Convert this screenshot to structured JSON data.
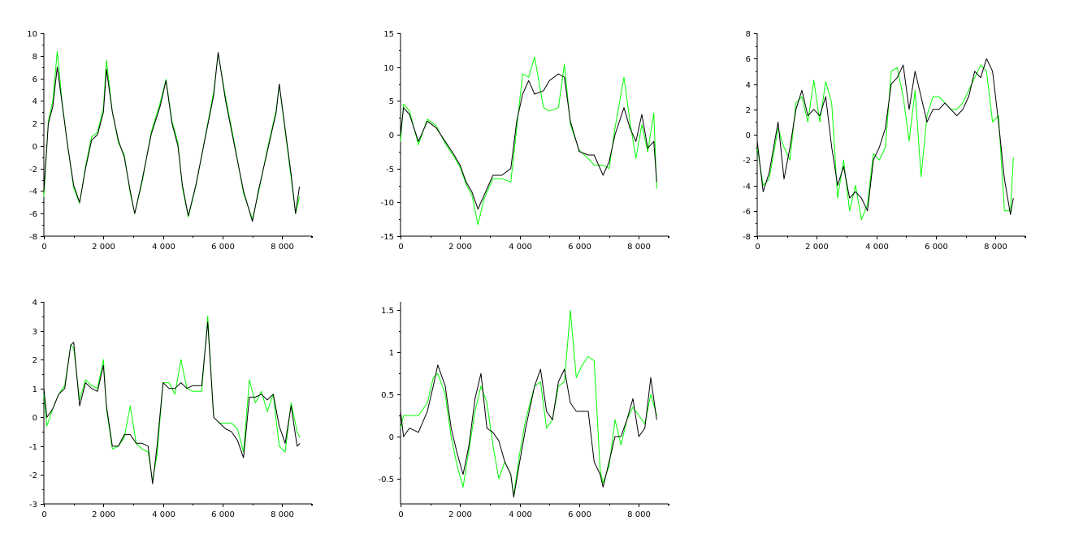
{
  "colors": {
    "background": "#ffffff",
    "axis": "#000000",
    "series_black": "#000000",
    "series_green": "#00ff00"
  },
  "chart_data": [
    {
      "type": "line",
      "grid": false,
      "xlim": [
        0,
        9000
      ],
      "ylim": [
        -8,
        10
      ],
      "xticks": [
        0,
        2000,
        4000,
        6000,
        8000
      ],
      "xtick_labels": [
        "0",
        "2 000",
        "4 000",
        "6 000",
        "8 000"
      ],
      "yticks": [
        -8,
        -6,
        -4,
        -2,
        0,
        2,
        4,
        6,
        8,
        10
      ],
      "ytick_labels": [
        "-8",
        "-6",
        "-4",
        "-2",
        "0",
        "2",
        "4",
        "6",
        "8",
        "10"
      ],
      "series": [
        {
          "color": "#000000",
          "x": [
            0,
            150,
            300,
            450,
            600,
            800,
            1000,
            1200,
            1400,
            1600,
            1800,
            2000,
            2100,
            2300,
            2500,
            2700,
            2900,
            3050,
            3300,
            3600,
            3900,
            4100,
            4300,
            4500,
            4650,
            4850,
            5100,
            5400,
            5700,
            5850,
            6100,
            6400,
            6700,
            7000,
            7200,
            7500,
            7800,
            7900,
            8100,
            8300,
            8450,
            8580
          ],
          "y": [
            -4,
            2,
            3.5,
            7,
            4,
            0,
            -3.5,
            -5,
            -2,
            0.5,
            1,
            3,
            6.8,
            3,
            0.5,
            -1,
            -4,
            -6,
            -3,
            1,
            3.5,
            5.8,
            2,
            0,
            -3.5,
            -6.2,
            -3.5,
            0.5,
            4.5,
            8.3,
            4,
            0,
            -4,
            -6.7,
            -4,
            -0.5,
            3,
            5.5,
            1.5,
            -2.5,
            -6,
            -3.6
          ]
        },
        {
          "color": "#00ff00",
          "x": [
            0,
            150,
            300,
            450,
            600,
            800,
            1000,
            1200,
            1400,
            1600,
            1800,
            2000,
            2100,
            2300,
            2500,
            2700,
            2900,
            3050,
            3300,
            3600,
            3900,
            4100,
            4300,
            4500,
            4650,
            4850,
            5100,
            5400,
            5700,
            5850,
            6100,
            6400,
            6700,
            7000,
            7200,
            7500,
            7800,
            7900,
            8100,
            8300,
            8450,
            8580
          ],
          "y": [
            -4.5,
            2.2,
            4,
            8.4,
            4.2,
            0,
            -3.7,
            -5.1,
            -1.8,
            0.8,
            1.2,
            3.4,
            7.6,
            3,
            0.3,
            -0.8,
            -4.2,
            -6,
            -3.2,
            1.2,
            3.8,
            5.9,
            2.2,
            0.3,
            -3.7,
            -6.3,
            -3.6,
            0.6,
            4.8,
            8.2,
            4.3,
            0.2,
            -4.2,
            -6.5,
            -4.2,
            -0.3,
            3.2,
            5.4,
            1.3,
            -2.8,
            -6,
            -4.5
          ]
        }
      ]
    },
    {
      "type": "line",
      "grid": false,
      "xlim": [
        0,
        9000
      ],
      "ylim": [
        -15,
        15
      ],
      "xticks": [
        0,
        2000,
        4000,
        6000,
        8000
      ],
      "xtick_labels": [
        "0",
        "2 000",
        "4 000",
        "6 000",
        "8 000"
      ],
      "yticks": [
        -15,
        -10,
        -5,
        0,
        5,
        10,
        15
      ],
      "ytick_labels": [
        "-15",
        "-10",
        "-5",
        "0",
        "5",
        "10",
        "15"
      ],
      "series": [
        {
          "color": "#000000",
          "x": [
            0,
            100,
            300,
            600,
            900,
            1200,
            1500,
            1800,
            2000,
            2200,
            2400,
            2600,
            2800,
            3100,
            3400,
            3700,
            3900,
            4100,
            4300,
            4500,
            4800,
            5000,
            5300,
            5500,
            5700,
            6000,
            6300,
            6500,
            6800,
            7000,
            7200,
            7500,
            7700,
            7900,
            8100,
            8300,
            8500,
            8600
          ],
          "y": [
            0,
            4,
            3,
            -1,
            2,
            1,
            -1,
            -3,
            -4.5,
            -7,
            -8.5,
            -11,
            -9,
            -6,
            -6,
            -5,
            2,
            6,
            8,
            6,
            6.5,
            8,
            9,
            8.5,
            2,
            -2.5,
            -3,
            -3,
            -6,
            -4,
            0,
            4,
            1,
            -1,
            3,
            -2,
            -1,
            -7
          ]
        },
        {
          "color": "#00ff00",
          "x": [
            0,
            100,
            300,
            600,
            900,
            1200,
            1500,
            1800,
            2000,
            2200,
            2400,
            2600,
            2800,
            3100,
            3400,
            3700,
            3900,
            4100,
            4300,
            4500,
            4800,
            5000,
            5300,
            5500,
            5700,
            6000,
            6300,
            6500,
            6800,
            7000,
            7200,
            7500,
            7700,
            7900,
            8100,
            8300,
            8500,
            8600
          ],
          "y": [
            -1,
            4.5,
            3.5,
            -1.5,
            2.3,
            1.3,
            -1.3,
            -3.3,
            -4.8,
            -7.3,
            -9,
            -13.3,
            -9.5,
            -6.5,
            -6.5,
            -7,
            1,
            9,
            8.5,
            11.5,
            4,
            3.5,
            4,
            10.4,
            1.5,
            -2.3,
            -3.5,
            -4.5,
            -4.5,
            -5,
            1,
            8.5,
            2,
            -3.5,
            1.5,
            -2.5,
            3.2,
            -8
          ]
        }
      ]
    },
    {
      "type": "line",
      "grid": false,
      "xlim": [
        0,
        9000
      ],
      "ylim": [
        -8,
        8
      ],
      "xticks": [
        0,
        2000,
        4000,
        6000,
        8000
      ],
      "xtick_labels": [
        "0",
        "2 000",
        "4 000",
        "6 000",
        "8 000"
      ],
      "yticks": [
        -8,
        -6,
        -4,
        -2,
        0,
        2,
        4,
        6,
        8
      ],
      "ytick_labels": [
        "-8",
        "-6",
        "-4",
        "-2",
        "0",
        "2",
        "4",
        "6",
        "8"
      ],
      "series": [
        {
          "color": "#000000",
          "x": [
            0,
            200,
            400,
            700,
            900,
            1100,
            1300,
            1500,
            1700,
            1900,
            2100,
            2300,
            2500,
            2700,
            2900,
            3100,
            3300,
            3500,
            3700,
            3900,
            4100,
            4300,
            4500,
            4700,
            4900,
            5100,
            5300,
            5500,
            5700,
            5900,
            6100,
            6300,
            6500,
            6700,
            6900,
            7100,
            7300,
            7500,
            7700,
            7900,
            8100,
            8300,
            8500,
            8600
          ],
          "y": [
            -0.5,
            -4.5,
            -3,
            1,
            -3.5,
            -1,
            2,
            3.5,
            1.5,
            2,
            1.5,
            3,
            -1,
            -4,
            -2.5,
            -5,
            -4.5,
            -5,
            -6,
            -2,
            -1,
            0.5,
            4,
            4.5,
            5.5,
            2,
            5,
            3,
            1,
            2,
            2,
            2.5,
            2,
            1.5,
            2,
            3,
            5,
            4.5,
            6,
            5,
            1,
            -3.5,
            -6.3,
            -5
          ]
        },
        {
          "color": "#00ff00",
          "x": [
            0,
            200,
            400,
            700,
            900,
            1100,
            1300,
            1500,
            1700,
            1900,
            2100,
            2300,
            2500,
            2700,
            2900,
            3100,
            3300,
            3500,
            3700,
            3900,
            4100,
            4300,
            4500,
            4700,
            4900,
            5100,
            5300,
            5500,
            5700,
            5900,
            6100,
            6300,
            6500,
            6700,
            6900,
            7100,
            7300,
            7500,
            7700,
            7900,
            8100,
            8300,
            8500,
            8600
          ],
          "y": [
            -1,
            -4,
            -3.5,
            0.5,
            -1,
            -2,
            2.5,
            3,
            1,
            4.3,
            1,
            4.2,
            2.5,
            -5,
            -2,
            -6,
            -4,
            -6.7,
            -5.5,
            -1.5,
            -2,
            -1,
            5,
            5.3,
            3,
            -0.5,
            3.5,
            -3.3,
            1.5,
            3,
            3,
            2.5,
            2,
            2,
            2.5,
            3.5,
            4.5,
            5.5,
            5,
            1,
            1.5,
            -6,
            -6,
            -1.8
          ]
        }
      ]
    },
    {
      "type": "line",
      "grid": false,
      "xlim": [
        0,
        9000
      ],
      "ylim": [
        -3,
        4
      ],
      "xticks": [
        0,
        2000,
        4000,
        6000,
        8000
      ],
      "xtick_labels": [
        "0",
        "2 000",
        "4 000",
        "6 000",
        "8 000"
      ],
      "yticks": [
        -3,
        -2,
        -1,
        0,
        1,
        2,
        3,
        4
      ],
      "ytick_labels": [
        "-3",
        "-2",
        "-1",
        "0",
        "1",
        "2",
        "3",
        "4"
      ],
      "series": [
        {
          "color": "#000000",
          "x": [
            0,
            100,
            300,
            500,
            700,
            900,
            1000,
            1200,
            1400,
            1600,
            1800,
            2000,
            2100,
            2300,
            2500,
            2700,
            2900,
            3100,
            3300,
            3500,
            3650,
            3800,
            4000,
            4200,
            4400,
            4600,
            4800,
            5000,
            5300,
            5500,
            5700,
            5900,
            6100,
            6300,
            6500,
            6700,
            6900,
            7100,
            7300,
            7500,
            7700,
            7900,
            8100,
            8300,
            8500,
            8600
          ],
          "y": [
            1,
            0,
            0.3,
            0.8,
            1,
            2.5,
            2.6,
            0.4,
            1.2,
            1,
            0.9,
            1.8,
            0.4,
            -1,
            -1,
            -0.6,
            -0.6,
            -0.9,
            -0.9,
            -1,
            -2.3,
            -1,
            1.2,
            1,
            1,
            1.2,
            1,
            1.1,
            1.1,
            3.3,
            0,
            -0.2,
            -0.4,
            -0.5,
            -0.8,
            -1.4,
            0.7,
            0.7,
            0.8,
            0.6,
            0.8,
            -0.3,
            -0.9,
            0.4,
            -1,
            -0.9
          ]
        },
        {
          "color": "#00ff00",
          "x": [
            0,
            100,
            300,
            500,
            700,
            900,
            1000,
            1200,
            1400,
            1600,
            1800,
            2000,
            2100,
            2300,
            2500,
            2700,
            2900,
            3100,
            3300,
            3500,
            3650,
            3800,
            4000,
            4200,
            4400,
            4600,
            4800,
            5000,
            5300,
            5500,
            5700,
            5900,
            6100,
            6300,
            6500,
            6700,
            6900,
            7100,
            7300,
            7500,
            7700,
            7900,
            8100,
            8300,
            8500,
            8600
          ],
          "y": [
            0.8,
            -0.3,
            0.3,
            0.8,
            1.1,
            2.5,
            2.4,
            0.6,
            1.3,
            1.1,
            1,
            2,
            0.3,
            -1.1,
            -1,
            -0.7,
            0.4,
            -0.9,
            -1.1,
            -1.2,
            -2.2,
            -1.3,
            1.2,
            1.2,
            0.8,
            2,
            1,
            0.9,
            0.9,
            3.5,
            0,
            -0.2,
            -0.2,
            -0.2,
            -0.4,
            -1.2,
            1.3,
            0.5,
            0.9,
            0.2,
            0.8,
            -1,
            -1.2,
            0.5,
            -0.5,
            -0.7
          ]
        }
      ]
    },
    {
      "type": "line",
      "grid": false,
      "xlim": [
        0,
        9000
      ],
      "ylim": [
        -0.8,
        1.6
      ],
      "xticks": [
        0,
        2000,
        4000,
        6000,
        8000
      ],
      "xtick_labels": [
        "0",
        "2 000",
        "4 000",
        "6 000",
        "8 000"
      ],
      "yticks": [
        -0.5,
        0,
        0.5,
        1,
        1.5
      ],
      "ytick_labels": [
        "-0.5",
        "0",
        "0.5",
        "1",
        "1.5"
      ],
      "series": [
        {
          "color": "#000000",
          "x": [
            0,
            100,
            300,
            600,
            900,
            1100,
            1250,
            1500,
            1700,
            1900,
            2100,
            2300,
            2500,
            2700,
            2900,
            3100,
            3300,
            3500,
            3700,
            3800,
            4000,
            4200,
            4500,
            4700,
            4900,
            5100,
            5300,
            5500,
            5700,
            5900,
            6100,
            6300,
            6500,
            6700,
            6800,
            7000,
            7200,
            7400,
            7600,
            7800,
            8000,
            8200,
            8400,
            8600
          ],
          "y": [
            0.3,
            0,
            0.1,
            0.05,
            0.3,
            0.6,
            0.85,
            0.6,
            0.1,
            -0.2,
            -0.45,
            -0.1,
            0.45,
            0.75,
            0.1,
            0.05,
            -0.05,
            -0.3,
            -0.45,
            -0.72,
            -0.3,
            0.1,
            0.6,
            0.8,
            0.3,
            0.2,
            0.65,
            0.8,
            0.4,
            0.3,
            0.3,
            0.3,
            -0.3,
            -0.45,
            -0.6,
            -0.3,
            0,
            0,
            0.2,
            0.45,
            0,
            0.1,
            0.7,
            0.2
          ]
        },
        {
          "color": "#00ff00",
          "x": [
            0,
            100,
            300,
            600,
            900,
            1100,
            1250,
            1500,
            1700,
            1900,
            2100,
            2300,
            2500,
            2700,
            2900,
            3100,
            3300,
            3500,
            3700,
            3800,
            4000,
            4200,
            4500,
            4700,
            4900,
            5100,
            5300,
            5500,
            5700,
            5900,
            6100,
            6300,
            6500,
            6700,
            6800,
            7000,
            7200,
            7400,
            7600,
            7800,
            8000,
            8200,
            8400,
            8600
          ],
          "y": [
            0.1,
            0.25,
            0.25,
            0.25,
            0.4,
            0.7,
            0.75,
            0.5,
            0,
            -0.35,
            -0.6,
            -0.15,
            0.3,
            0.6,
            0.4,
            -0.1,
            -0.5,
            -0.3,
            -0.45,
            -0.7,
            -0.2,
            0.2,
            0.6,
            0.65,
            0.1,
            0.2,
            0.6,
            0.65,
            1.5,
            0.7,
            0.85,
            0.95,
            0.9,
            -0.4,
            -0.55,
            -0.35,
            0.2,
            -0.1,
            0.2,
            0.35,
            0.25,
            0.15,
            0.5,
            0.25
          ]
        }
      ]
    }
  ]
}
